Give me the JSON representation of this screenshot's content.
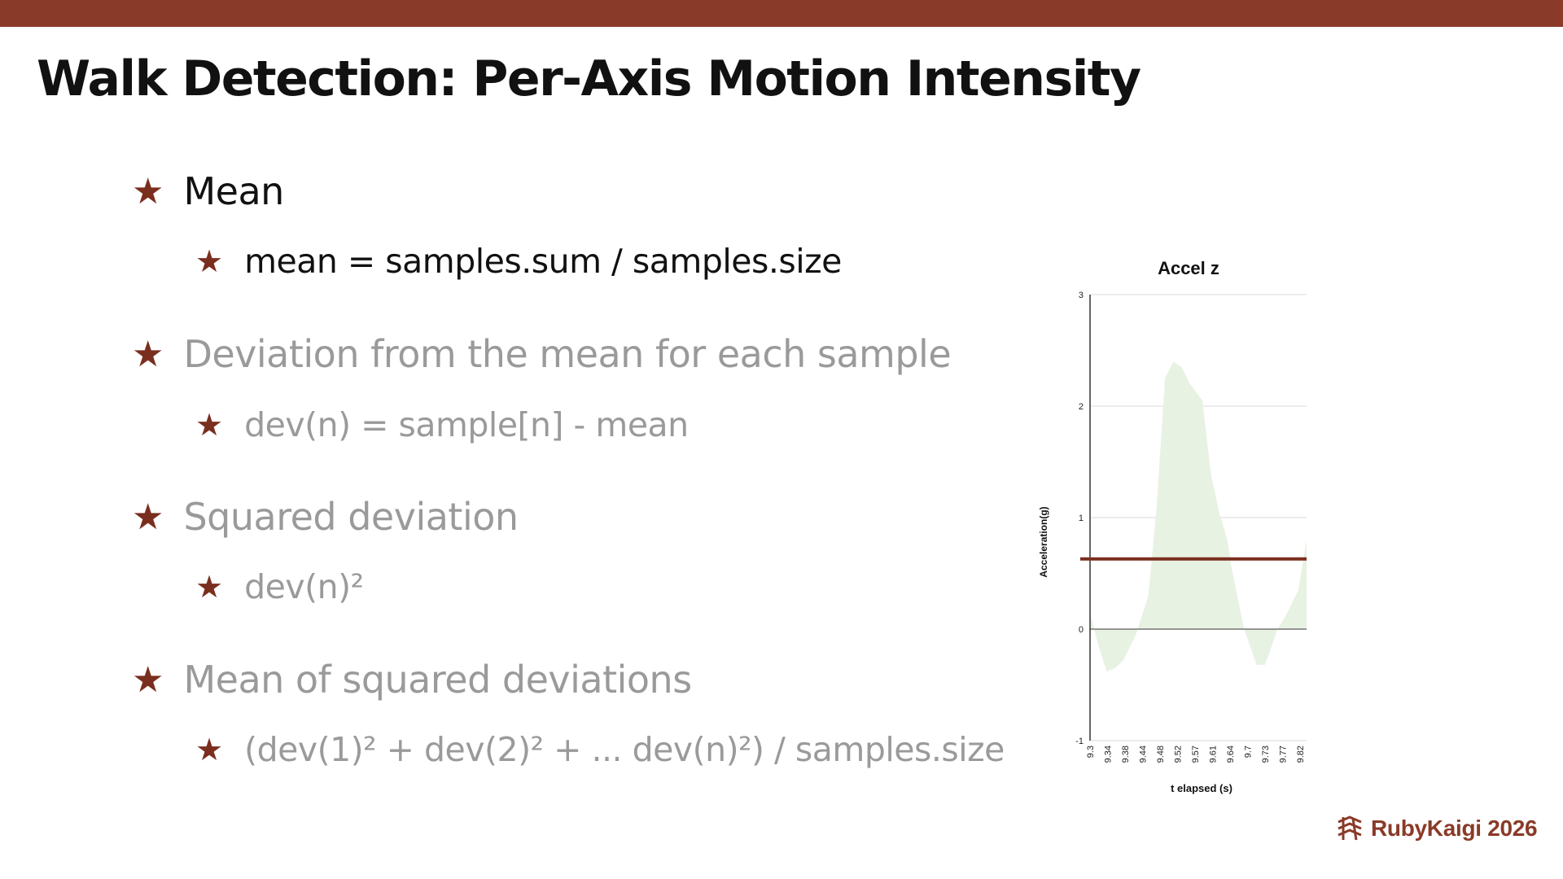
{
  "slide": {
    "title": "Walk Detection: Per-Axis Motion Intensity"
  },
  "bullets": [
    {
      "level": 1,
      "text": "Mean",
      "active": true
    },
    {
      "level": 2,
      "text": "mean = samples.sum / samples.size",
      "active": true
    },
    {
      "level": 1,
      "text": "Deviation from the mean for each sample",
      "active": false
    },
    {
      "level": 2,
      "text": "dev(n) = sample[n] - mean",
      "active": false
    },
    {
      "level": 1,
      "text": "Squared deviation",
      "active": false
    },
    {
      "level": 2,
      "text": "dev(n)²",
      "active": false
    },
    {
      "level": 1,
      "text": "Mean of squared deviations",
      "active": false
    },
    {
      "level": 2,
      "text": "(dev(1)² + dev(2)² + ... dev(n)²) / samples.size",
      "active": false
    }
  ],
  "icons": {
    "bullet": "star-icon"
  },
  "colors": {
    "accent": "#8a3a28",
    "fill": "#e8f2e2",
    "mean_line": "#7a2e1e"
  },
  "chart_data": {
    "type": "area",
    "title": "Accel z",
    "xlabel": "t elapsed (s)",
    "ylabel": "Acceleration(g)",
    "ylim": [
      -1,
      3
    ],
    "yticks": [
      "3",
      "2",
      "1",
      "0",
      "-1"
    ],
    "xticks": [
      "9.3",
      "9.34",
      "9.38",
      "9.44",
      "9.48",
      "9.52",
      "9.57",
      "9.61",
      "9.64",
      "9.7",
      "9.73",
      "9.77",
      "9.82"
    ],
    "x": [
      9.3,
      9.32,
      9.34,
      9.36,
      9.38,
      9.41,
      9.44,
      9.46,
      9.48,
      9.5,
      9.52,
      9.54,
      9.57,
      9.59,
      9.61,
      9.63,
      9.64,
      9.67,
      9.7,
      9.72,
      9.73,
      9.75,
      9.77,
      9.8,
      9.82
    ],
    "values": [
      0.15,
      -0.15,
      -0.38,
      -0.35,
      -0.28,
      -0.05,
      0.3,
      1.1,
      2.25,
      2.4,
      2.35,
      2.2,
      2.05,
      1.4,
      1.05,
      0.8,
      0.55,
      0.0,
      -0.32,
      -0.32,
      -0.22,
      0.0,
      0.12,
      0.35,
      0.8
    ],
    "mean": 0.63,
    "grid": true,
    "legend": "none"
  }
}
